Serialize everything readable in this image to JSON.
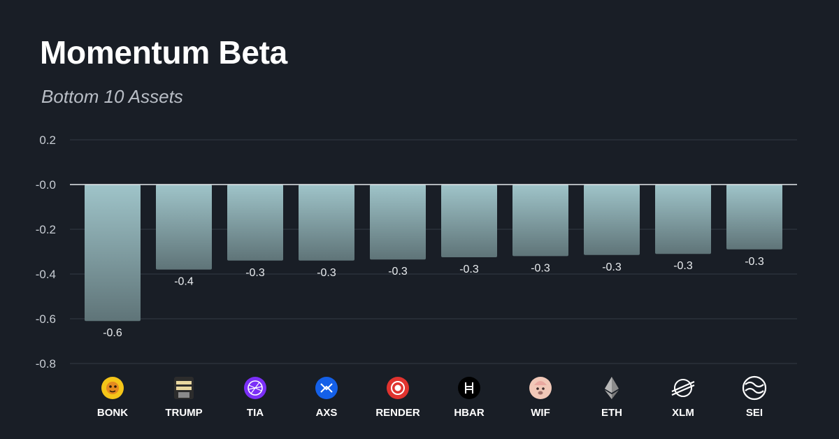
{
  "title": "Momentum Beta",
  "subtitle": "Bottom 10 Assets",
  "colors": {
    "background": "#191e26",
    "grid": "#2b313a",
    "zero_line": "#e6e9ec",
    "bar_top": "#9fc4c9",
    "bar_bottom": "#5f7478"
  },
  "chart_data": {
    "type": "bar",
    "title": "Momentum Beta",
    "subtitle": "Bottom 10 Assets",
    "xlabel": "",
    "ylabel": "",
    "ylim": [
      -0.8,
      0.2
    ],
    "yticks": [
      0.2,
      -0.0,
      -0.2,
      -0.4,
      -0.6,
      -0.8
    ],
    "ytick_labels": [
      "0.2",
      "-0.0",
      "-0.2",
      "-0.4",
      "-0.6",
      "-0.8"
    ],
    "grid": true,
    "categories": [
      "BONK",
      "TRUMP",
      "TIA",
      "AXS",
      "RENDER",
      "HBAR",
      "WIF",
      "ETH",
      "XLM",
      "SEI"
    ],
    "values": [
      -0.61,
      -0.38,
      -0.34,
      -0.34,
      -0.335,
      -0.325,
      -0.32,
      -0.315,
      -0.31,
      -0.29
    ],
    "data_labels": [
      "-0.6",
      "-0.4",
      "-0.3",
      "-0.3",
      "-0.3",
      "-0.3",
      "-0.3",
      "-0.3",
      "-0.3",
      "-0.3"
    ],
    "icons": [
      "bonk-icon",
      "trump-icon",
      "tia-icon",
      "axs-icon",
      "render-icon",
      "hbar-icon",
      "wif-icon",
      "eth-icon",
      "xlm-icon",
      "sei-icon"
    ]
  }
}
